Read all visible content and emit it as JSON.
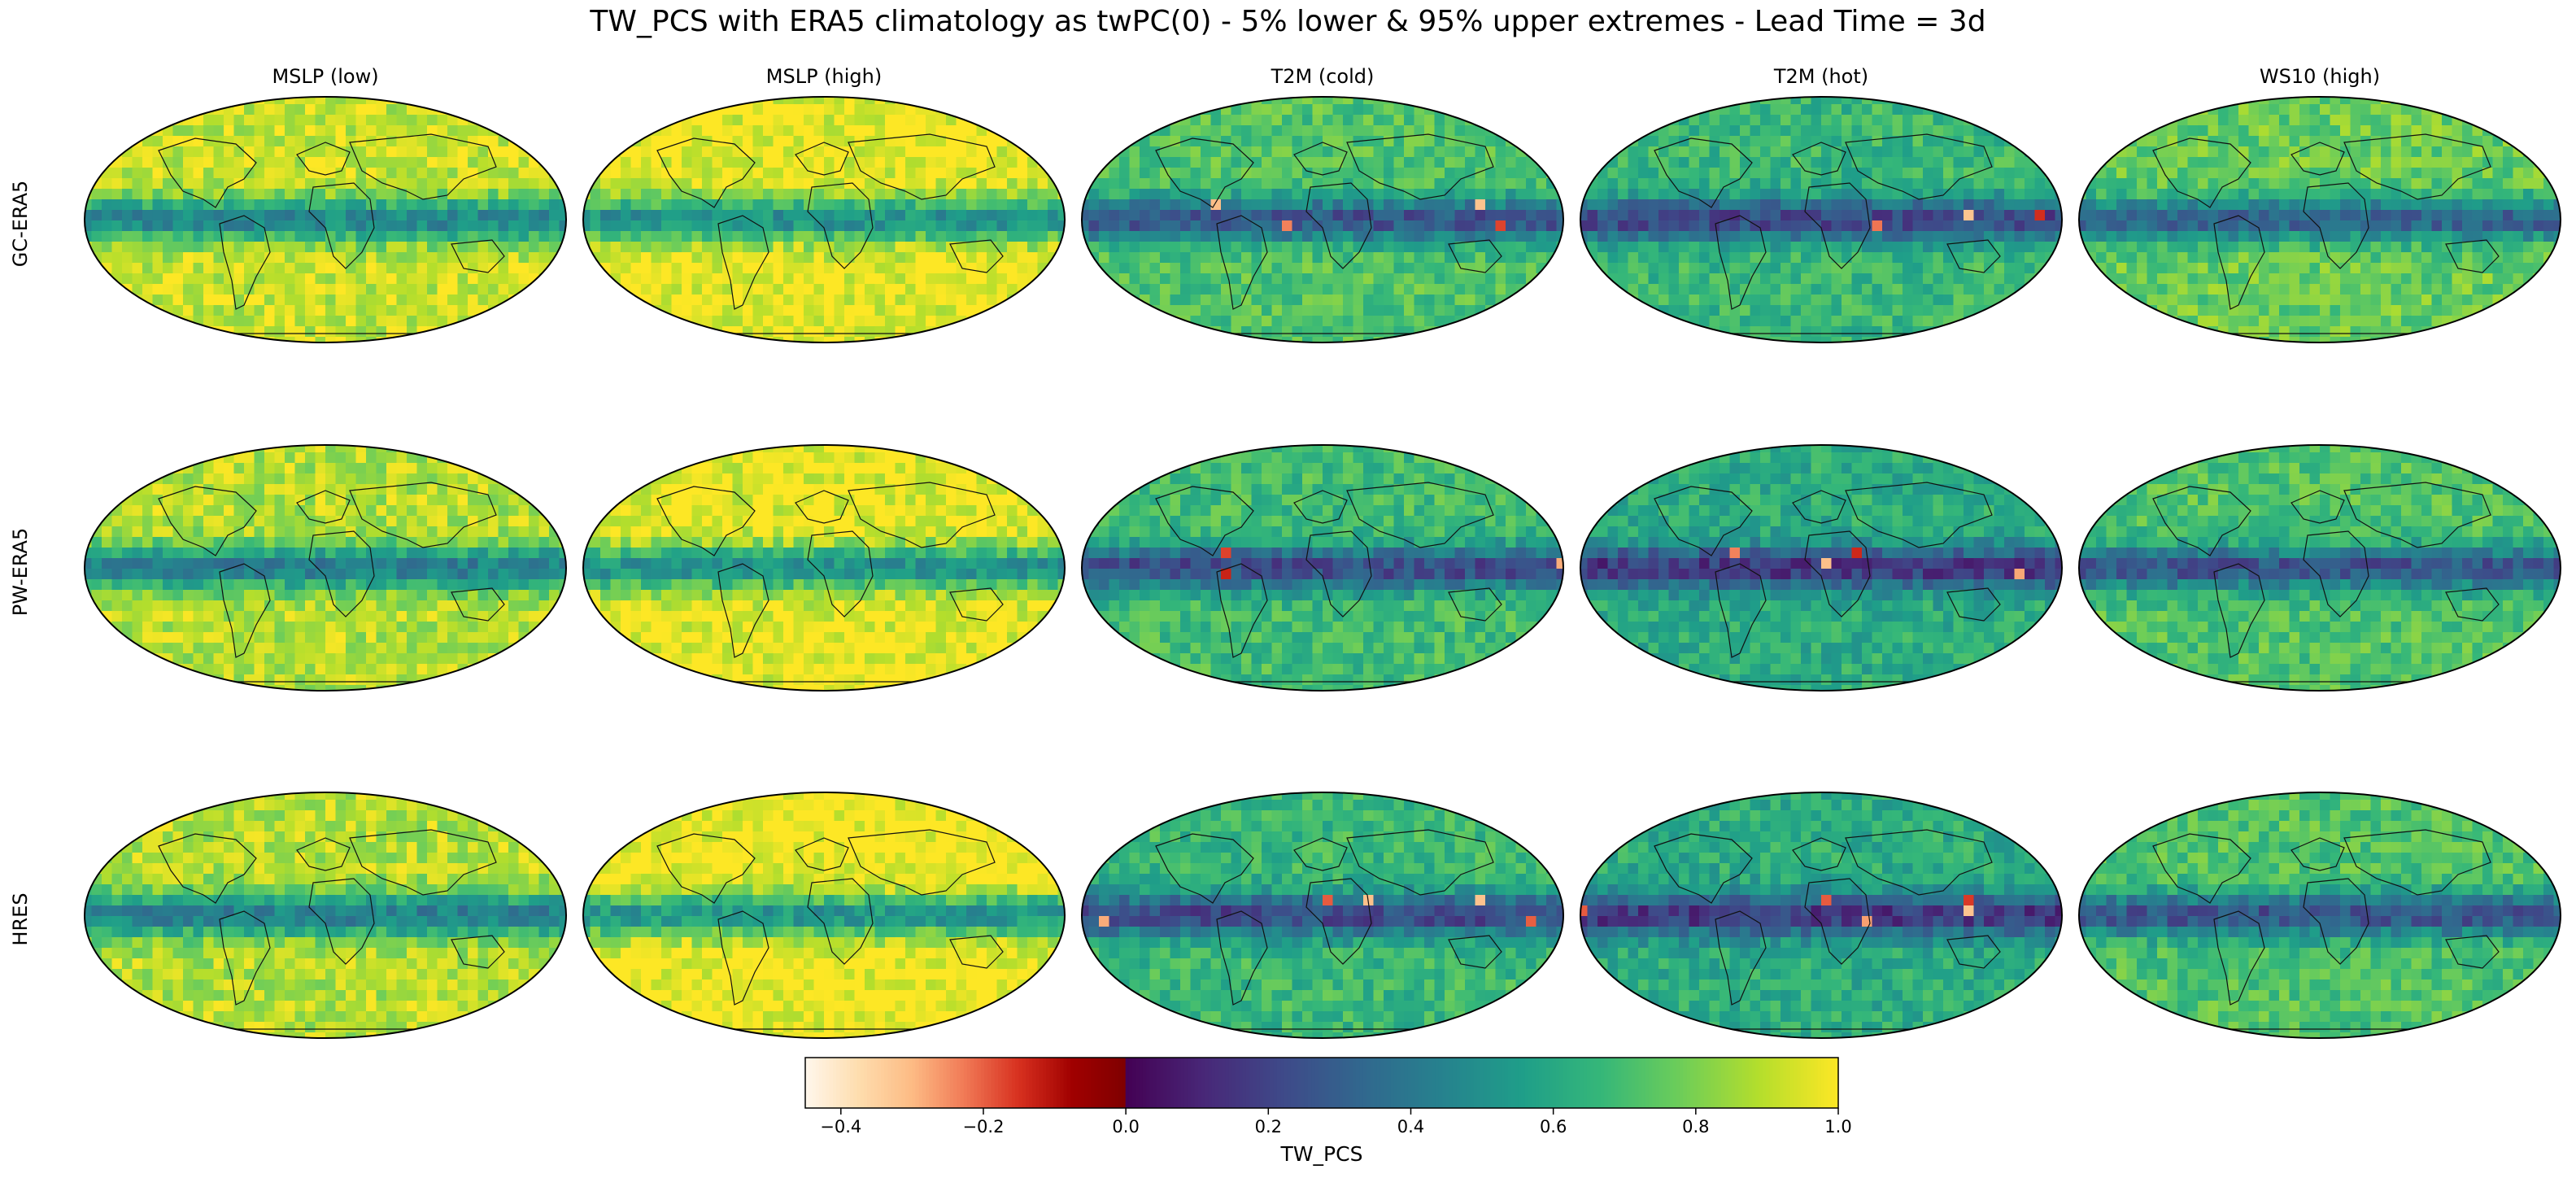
{
  "chart_data": {
    "type": "heatmap",
    "title": "TW_PCS with ERA5 climatology as twPC(0) - 5% lower & 95% upper extremes - Lead Time = 3d",
    "columns": [
      "MSLP (low)",
      "MSLP (high)",
      "T2M (cold)",
      "T2M (hot)",
      "WS10 (high)"
    ],
    "rows": [
      "GC-ERA5",
      "PW-ERA5",
      "HRES"
    ],
    "panel_projection": "Robinson world map with coastlines",
    "colorbar": {
      "label": "TW_PCS",
      "range": [
        -0.45,
        1.0
      ],
      "ticks": [
        -0.4,
        -0.2,
        0.0,
        0.2,
        0.4,
        0.6,
        0.8,
        1.0
      ],
      "tick_labels": [
        "−0.4",
        "−0.2",
        "0.0",
        "0.2",
        "0.4",
        "0.6",
        "0.8",
        "1.0"
      ],
      "colormap_negative": "OrRd (white to dark red)",
      "colormap_positive": "viridis (dark purple to yellow)"
    },
    "panel_means_approx": [
      [
        0.75,
        0.8,
        0.55,
        0.5,
        0.6
      ],
      [
        0.72,
        0.8,
        0.52,
        0.45,
        0.55
      ],
      [
        0.72,
        0.82,
        0.5,
        0.45,
        0.55
      ]
    ]
  }
}
